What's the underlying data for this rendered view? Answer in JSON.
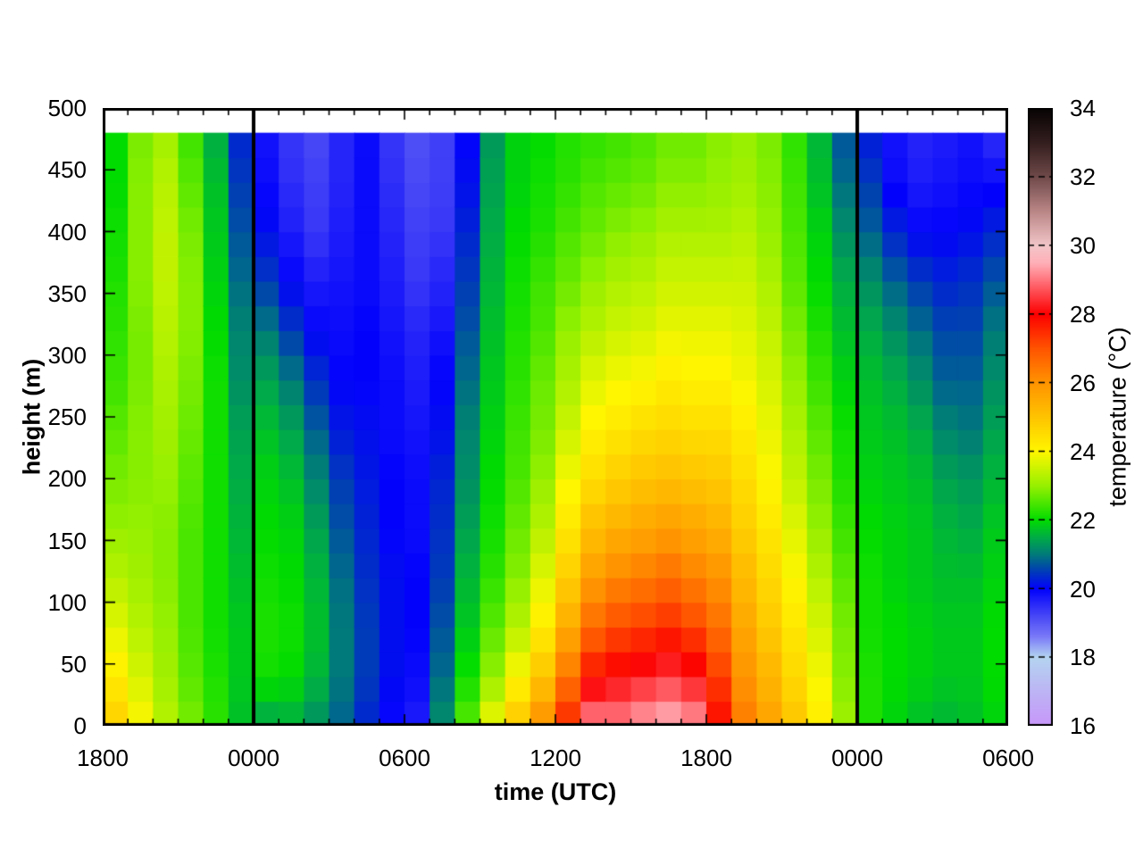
{
  "axes": {
    "x_title": "time (UTC)",
    "y_title": "height (m)",
    "cb_title": "temperature (°C)",
    "x_ticks": [
      "1800",
      "0000",
      "0600",
      "1200",
      "1800",
      "0000",
      "0600"
    ],
    "y_ticks": [
      "500",
      "450",
      "400",
      "350",
      "300",
      "250",
      "200",
      "150",
      "100",
      "50",
      "0"
    ],
    "cb_ticks": [
      "34",
      "32",
      "30",
      "28",
      "26",
      "24",
      "22",
      "20",
      "18",
      "16"
    ]
  },
  "chart_data": {
    "type": "heatmap",
    "xlabel": "time (UTC)",
    "ylabel": "height (m)",
    "colorbar_label": "temperature (°C)",
    "x_axis_tick_labels": [
      "1800",
      "0000",
      "0600",
      "1200",
      "1800",
      "0000",
      "0600"
    ],
    "x_hour_labels": [
      "1800",
      "1900",
      "2000",
      "2100",
      "2200",
      "2300",
      "0000",
      "0100",
      "0200",
      "0300",
      "0400",
      "0500",
      "0600",
      "0700",
      "0800",
      "0900",
      "1000",
      "1100",
      "1200",
      "1300",
      "1400",
      "1500",
      "1600",
      "1700",
      "1800",
      "1900",
      "2000",
      "2100",
      "2200",
      "2300",
      "0000",
      "0100",
      "0200",
      "0300",
      "0400",
      "0500"
    ],
    "levels_m": [
      0,
      40,
      80,
      120,
      160,
      200,
      240,
      280,
      320,
      360,
      400,
      440,
      480
    ],
    "temperature_c": [
      [
        24.8,
        24.2,
        23.7,
        23.3,
        23.0,
        22.8,
        22.6,
        22.4,
        22.3,
        22.2,
        22.1,
        22.0,
        22.0
      ],
      [
        24.0,
        23.6,
        23.3,
        23.1,
        23.0,
        22.9,
        22.9,
        22.8,
        22.8,
        22.9,
        22.9,
        22.9,
        22.8
      ],
      [
        23.3,
        23.1,
        23.0,
        22.9,
        22.9,
        23.0,
        23.1,
        23.2,
        23.3,
        23.4,
        23.4,
        23.3,
        23.1
      ],
      [
        22.8,
        22.6,
        22.5,
        22.5,
        22.5,
        22.6,
        22.7,
        22.8,
        22.9,
        22.9,
        22.8,
        22.6,
        22.4
      ],
      [
        22.3,
        22.2,
        22.1,
        22.1,
        22.1,
        22.1,
        22.1,
        22.1,
        22.0,
        21.9,
        21.8,
        21.7,
        21.5
      ],
      [
        21.7,
        21.8,
        21.8,
        21.7,
        21.6,
        21.5,
        21.4,
        21.2,
        21.1,
        20.9,
        20.7,
        20.5,
        20.3
      ],
      [
        21.4,
        22.1,
        22.2,
        22.1,
        22.0,
        21.9,
        21.7,
        21.4,
        21.0,
        20.5,
        20.1,
        19.9,
        19.8
      ],
      [
        21.5,
        22.0,
        22.1,
        22.0,
        21.9,
        21.7,
        21.4,
        21.0,
        20.5,
        20.0,
        19.7,
        19.5,
        19.4
      ],
      [
        21.2,
        21.6,
        21.7,
        21.6,
        21.4,
        21.1,
        20.8,
        20.4,
        20.0,
        19.7,
        19.4,
        19.3,
        19.2
      ],
      [
        20.8,
        21.0,
        21.0,
        20.9,
        20.7,
        20.5,
        20.2,
        20.0,
        19.9,
        19.8,
        19.7,
        19.6,
        19.6
      ],
      [
        20.3,
        20.5,
        20.5,
        20.4,
        20.3,
        20.2,
        20.1,
        20.0,
        20.0,
        19.9,
        19.9,
        19.9,
        19.9
      ],
      [
        19.9,
        20.1,
        20.1,
        20.1,
        20.0,
        20.0,
        19.9,
        19.9,
        19.8,
        19.7,
        19.6,
        19.5,
        19.4
      ],
      [
        19.7,
        19.9,
        20.0,
        20.0,
        19.9,
        19.9,
        19.8,
        19.7,
        19.6,
        19.4,
        19.3,
        19.2,
        19.1
      ],
      [
        21.2,
        20.9,
        20.7,
        20.5,
        20.4,
        20.3,
        20.1,
        20.0,
        19.8,
        19.6,
        19.4,
        19.3,
        19.3
      ],
      [
        22.6,
        22.1,
        21.8,
        21.6,
        21.4,
        21.2,
        21.1,
        20.9,
        20.7,
        20.5,
        20.3,
        20.1,
        20.0
      ],
      [
        23.9,
        23.0,
        22.6,
        22.3,
        22.1,
        22.0,
        21.9,
        21.8,
        21.7,
        21.6,
        21.5,
        21.4,
        21.3
      ],
      [
        25.0,
        24.0,
        23.3,
        22.9,
        22.7,
        22.5,
        22.4,
        22.3,
        22.2,
        22.1,
        22.0,
        21.9,
        21.9
      ],
      [
        26.1,
        25.0,
        24.2,
        23.7,
        23.3,
        23.0,
        22.8,
        22.7,
        22.5,
        22.4,
        22.2,
        22.1,
        22.0
      ],
      [
        27.6,
        26.5,
        25.5,
        24.8,
        24.3,
        23.9,
        23.5,
        23.2,
        23.0,
        22.7,
        22.5,
        22.3,
        22.2
      ],
      [
        29.2,
        27.8,
        26.7,
        25.8,
        25.1,
        24.5,
        24.1,
        23.7,
        23.3,
        23.0,
        22.7,
        22.5,
        22.3
      ],
      [
        29.1,
        28.1,
        27.1,
        26.2,
        25.4,
        24.8,
        24.3,
        23.9,
        23.5,
        23.2,
        22.9,
        22.6,
        22.4
      ],
      [
        29.4,
        28.3,
        27.3,
        26.4,
        25.6,
        25.0,
        24.5,
        24.0,
        23.6,
        23.3,
        23.0,
        22.7,
        22.5
      ],
      [
        29.6,
        28.5,
        27.5,
        26.6,
        25.8,
        25.1,
        24.6,
        24.2,
        23.8,
        23.5,
        23.2,
        22.9,
        22.7
      ],
      [
        29.3,
        28.2,
        27.2,
        26.3,
        25.6,
        25.0,
        24.5,
        24.1,
        23.8,
        23.5,
        23.2,
        22.9,
        22.7
      ],
      [
        27.9,
        27.3,
        26.6,
        26.0,
        25.4,
        24.9,
        24.5,
        24.1,
        23.8,
        23.5,
        23.2,
        23.0,
        22.9
      ],
      [
        26.4,
        26.0,
        25.6,
        25.2,
        24.8,
        24.5,
        24.2,
        23.9,
        23.7,
        23.5,
        23.3,
        23.1,
        23.0
      ],
      [
        25.7,
        25.3,
        24.9,
        24.6,
        24.3,
        24.0,
        23.8,
        23.6,
        23.4,
        23.2,
        23.0,
        22.9,
        22.8
      ],
      [
        25.0,
        24.6,
        24.3,
        24.0,
        23.7,
        23.4,
        23.2,
        23.0,
        22.8,
        22.6,
        22.5,
        22.4,
        22.3
      ],
      [
        24.2,
        23.9,
        23.6,
        23.3,
        23.0,
        22.8,
        22.6,
        22.4,
        22.2,
        22.0,
        21.9,
        21.7,
        21.6
      ],
      [
        23.1,
        22.9,
        22.8,
        22.6,
        22.4,
        22.2,
        22.1,
        21.9,
        21.7,
        21.5,
        21.2,
        20.9,
        20.7
      ],
      [
        22.2,
        22.2,
        22.1,
        22.1,
        22.0,
        21.9,
        21.8,
        21.7,
        21.5,
        21.2,
        20.8,
        20.5,
        20.2
      ],
      [
        21.9,
        22.0,
        22.0,
        21.9,
        21.9,
        21.8,
        21.7,
        21.5,
        21.2,
        20.8,
        20.3,
        19.9,
        19.8
      ],
      [
        21.7,
        21.9,
        21.9,
        21.8,
        21.8,
        21.7,
        21.5,
        21.2,
        20.9,
        20.5,
        20.0,
        19.7,
        19.6
      ],
      [
        21.6,
        21.8,
        21.8,
        21.7,
        21.6,
        21.4,
        21.1,
        20.8,
        20.6,
        20.3,
        20.0,
        19.8,
        19.7
      ],
      [
        21.7,
        21.8,
        21.8,
        21.7,
        21.5,
        21.3,
        21.0,
        20.8,
        20.6,
        20.4,
        20.1,
        19.9,
        19.8
      ],
      [
        21.9,
        22.0,
        22.0,
        21.9,
        21.8,
        21.6,
        21.4,
        21.2,
        21.0,
        20.7,
        20.3,
        19.9,
        19.5
      ]
    ],
    "y_axis_range_m": [
      0,
      500
    ],
    "data_top_m": 480,
    "render_rows": 24,
    "colorbar_range_c": [
      16,
      34
    ],
    "colorbar_ticks_c": [
      16,
      18,
      20,
      22,
      24,
      26,
      28,
      30,
      32,
      34
    ],
    "x_major_tick_every_h": 6,
    "x_minor_tick_every_h": 1,
    "y_tick_every_m": 50,
    "vline_hour_indices": [
      6,
      30
    ],
    "vline_color": "#000000",
    "frame_color": "#000000",
    "background_above_data": "#ffffff",
    "palette_stops": [
      [
        16.0,
        [
          200,
          150,
          250
        ]
      ],
      [
        17.0,
        [
          188,
          180,
          244
        ]
      ],
      [
        18.0,
        [
          180,
          212,
          240
        ]
      ],
      [
        18.6,
        [
          122,
          122,
          248
        ]
      ],
      [
        19.2,
        [
          72,
          72,
          246
        ]
      ],
      [
        20.0,
        [
          2,
          2,
          252
        ]
      ],
      [
        20.6,
        [
          0,
          70,
          172
        ]
      ],
      [
        21.0,
        [
          0,
          122,
          122
        ]
      ],
      [
        21.5,
        [
          0,
          172,
          70
        ]
      ],
      [
        22.0,
        [
          0,
          220,
          0
        ]
      ],
      [
        23.0,
        [
          150,
          240,
          0
        ]
      ],
      [
        24.0,
        [
          255,
          246,
          0
        ]
      ],
      [
        25.0,
        [
          255,
          196,
          0
        ]
      ],
      [
        26.0,
        [
          255,
          148,
          0
        ]
      ],
      [
        27.0,
        [
          255,
          84,
          0
        ]
      ],
      [
        28.0,
        [
          252,
          0,
          0
        ]
      ],
      [
        28.8,
        [
          255,
          92,
          100
        ]
      ],
      [
        29.5,
        [
          255,
          176,
          184
        ]
      ],
      [
        30.0,
        [
          242,
          198,
          200
        ]
      ],
      [
        31.0,
        [
          186,
          134,
          134
        ]
      ],
      [
        32.0,
        [
          112,
          74,
          74
        ]
      ],
      [
        33.0,
        [
          52,
          30,
          30
        ]
      ],
      [
        34.0,
        [
          8,
          4,
          4
        ]
      ]
    ]
  }
}
